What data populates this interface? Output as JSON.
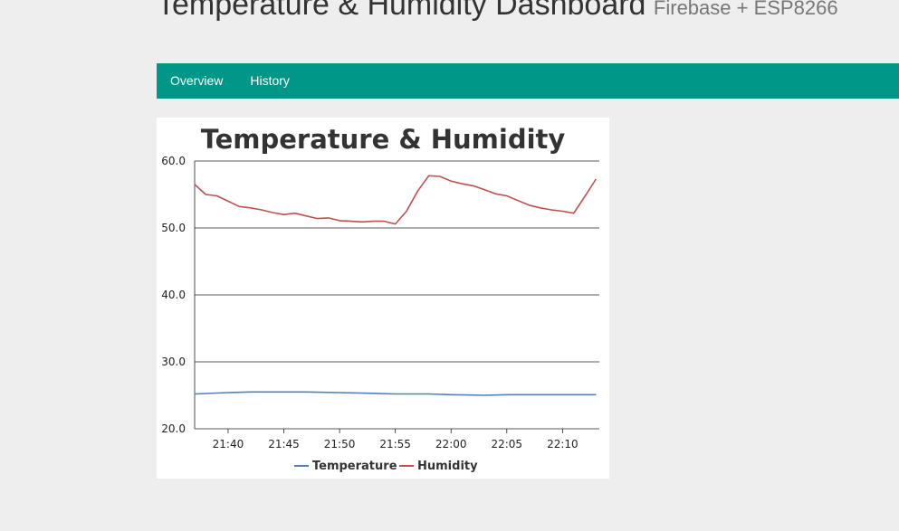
{
  "header": {
    "title": "Temperature & Humidity Dashboard",
    "subtitle": "Firebase + ESP8266"
  },
  "nav": {
    "items": [
      {
        "label": "Overview"
      },
      {
        "label": "History"
      }
    ],
    "color": "#009688"
  },
  "chart_data": {
    "type": "line",
    "title": "Temperature & Humidity",
    "xlabel": "",
    "ylabel": "",
    "ylim": [
      20,
      60
    ],
    "yticks": [
      "60.0",
      "50.0",
      "40.0",
      "30.0",
      "20.0"
    ],
    "xticks": [
      "21:40",
      "21:45",
      "21:50",
      "21:55",
      "22:00",
      "22:05",
      "22:10"
    ],
    "xticks_minutes": [
      40,
      45,
      50,
      55,
      60,
      65,
      70
    ],
    "xlim_minutes": [
      37.0,
      73.3
    ],
    "grid": true,
    "legend": "bottom",
    "series": [
      {
        "name": "Temperature",
        "color": "#4f81bd",
        "x": [
          "21:37",
          "21:40",
          "21:42",
          "21:45",
          "21:47",
          "21:50",
          "21:53",
          "21:55",
          "21:58",
          "22:00",
          "22:03",
          "22:05",
          "22:08",
          "22:10",
          "22:13"
        ],
        "values": [
          25.2,
          25.4,
          25.5,
          25.5,
          25.5,
          25.4,
          25.3,
          25.2,
          25.2,
          25.1,
          25.0,
          25.1,
          25.1,
          25.1,
          25.1
        ]
      },
      {
        "name": "Humidity",
        "color": "#c0504d",
        "x": [
          "21:37",
          "21:38",
          "21:39",
          "21:40",
          "21:41",
          "21:42",
          "21:43",
          "21:44",
          "21:45",
          "21:46",
          "21:47",
          "21:48",
          "21:49",
          "21:50",
          "21:51",
          "21:52",
          "21:53",
          "21:54",
          "21:55",
          "21:56",
          "21:57",
          "21:58",
          "21:59",
          "22:00",
          "22:01",
          "22:02",
          "22:03",
          "22:04",
          "22:05",
          "22:06",
          "22:07",
          "22:08",
          "22:09",
          "22:10",
          "22:11",
          "22:12",
          "22:13"
        ],
        "values": [
          56.5,
          55.0,
          54.8,
          54.0,
          53.2,
          53.0,
          52.7,
          52.3,
          52.0,
          52.2,
          51.8,
          51.4,
          51.5,
          51.1,
          51.0,
          50.9,
          51.0,
          51.0,
          50.6,
          52.5,
          55.5,
          57.8,
          57.7,
          57.0,
          56.6,
          56.3,
          55.7,
          55.1,
          54.8,
          54.1,
          53.4,
          53.0,
          52.7,
          52.5,
          52.2,
          54.7,
          57.3
        ]
      }
    ]
  }
}
